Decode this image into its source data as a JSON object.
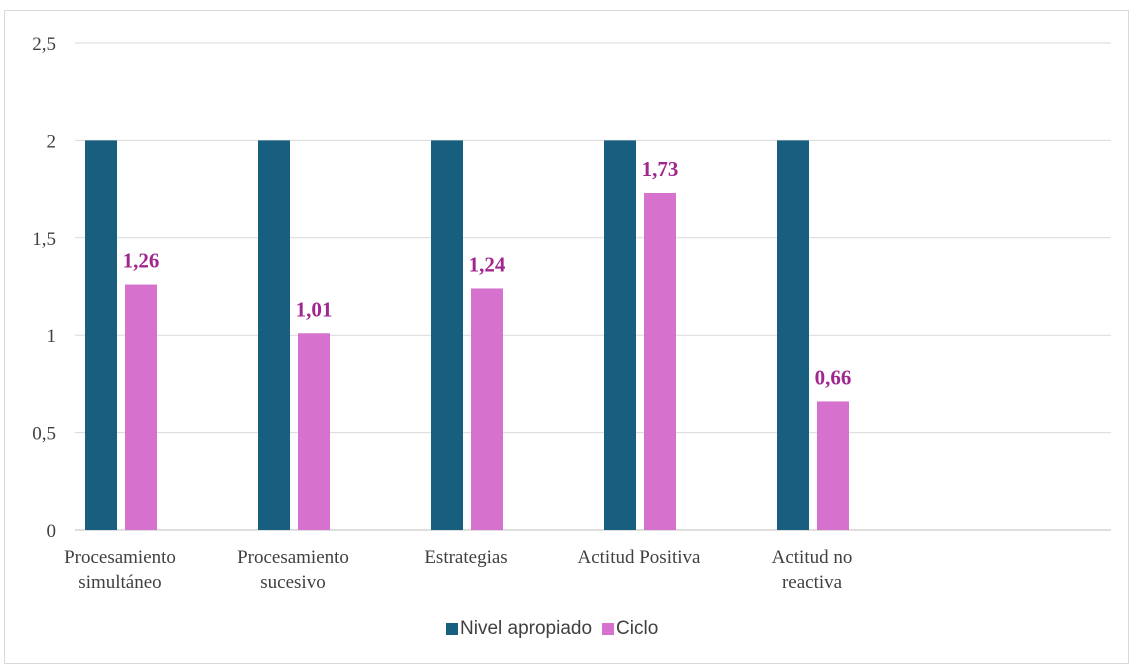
{
  "chart_data": {
    "type": "bar",
    "title": "",
    "xlabel": "",
    "ylabel": "",
    "ylim": [
      0,
      2.5
    ],
    "yticks": [
      "0",
      "0,5",
      "1",
      "1,5",
      "2",
      "2,5"
    ],
    "ytick_values": [
      0,
      0.5,
      1,
      1.5,
      2,
      2.5
    ],
    "grid": true,
    "legend_position": "bottom",
    "categories": [
      [
        "Procesamiento",
        "simultáneo"
      ],
      [
        "Procesamiento",
        "sucesivo"
      ],
      [
        "Estrategias"
      ],
      [
        "Actitud Positiva"
      ],
      [
        "Actitud no",
        "reactiva"
      ]
    ],
    "series": [
      {
        "name": "Nivel apropiado",
        "color": "#175e7f",
        "values": [
          2,
          2,
          2,
          2,
          2
        ],
        "labels": [
          "",
          "",
          "",
          "",
          ""
        ]
      },
      {
        "name": "Ciclo",
        "color": "#d672cd",
        "values": [
          1.26,
          1.01,
          1.24,
          1.73,
          0.66
        ],
        "labels": [
          "1,26",
          "1,01",
          "1,24",
          "1,73",
          "0,66"
        ]
      }
    ],
    "data_label_color": "#a0278f"
  }
}
